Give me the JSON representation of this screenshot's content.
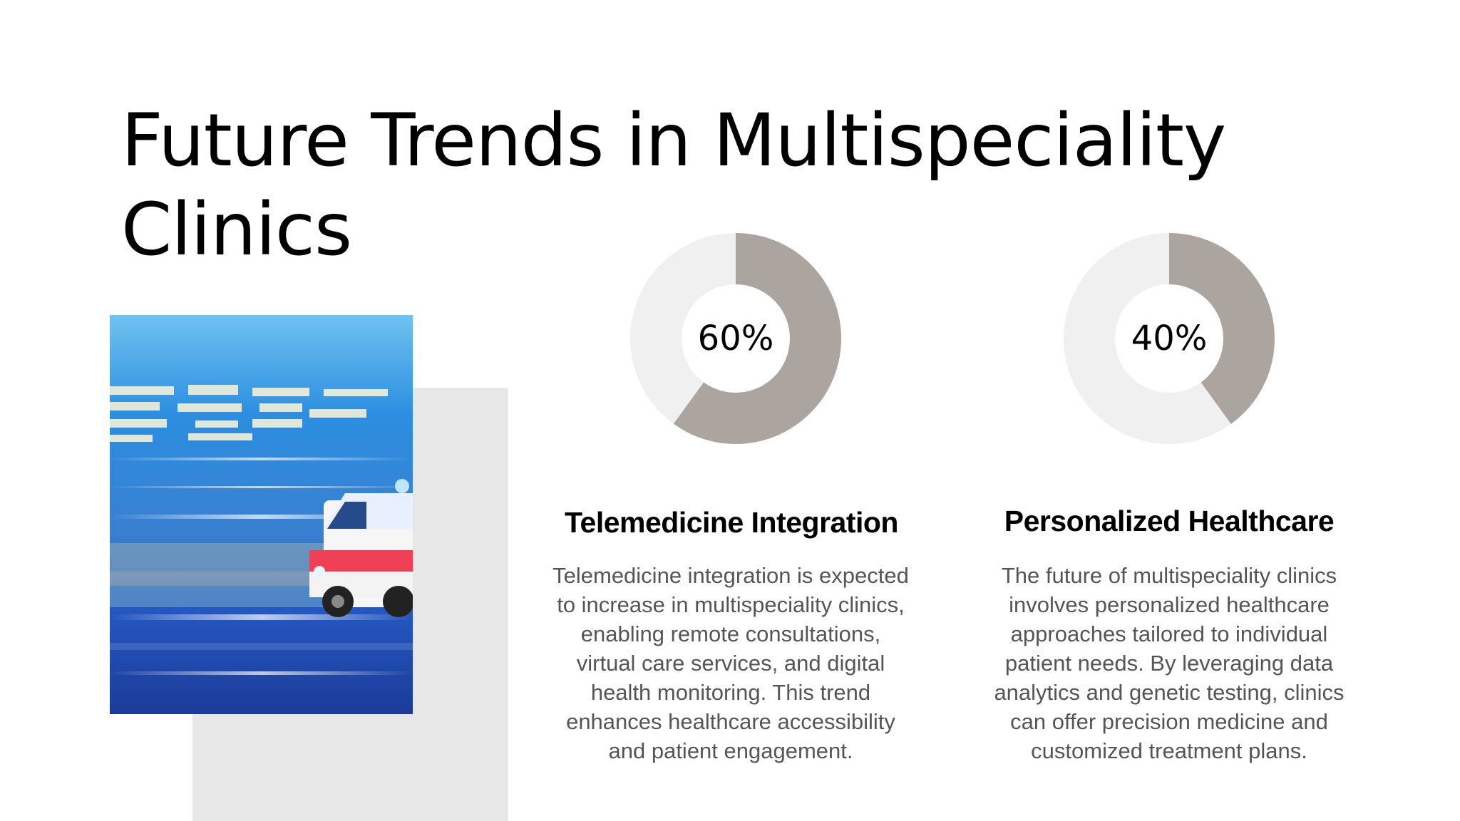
{
  "slide": {
    "title": "Future Trends in Multispeciality Clinics",
    "image_icon": "ambulance-motion-photo"
  },
  "stats": [
    {
      "percent_label": "60%",
      "value": 60,
      "heading": "Telemedicine Integration",
      "body": "Telemedicine integration is expected to increase in multispeciality clinics, enabling remote consultations, virtual care services, and digital health monitoring. This trend enhances healthcare accessibility and patient engagement."
    },
    {
      "percent_label": "40%",
      "value": 40,
      "heading": "Personalized Healthcare",
      "body": "The future of multispeciality clinics involves personalized healthcare approaches tailored to individual patient needs. By leveraging data analytics and genetic testing, clinics can offer precision medicine and customized treatment plans."
    }
  ],
  "colors": {
    "donut_fill": "#aca49f",
    "donut_track": "#f0f0f0",
    "accent_block": "#e7e7e7"
  }
}
